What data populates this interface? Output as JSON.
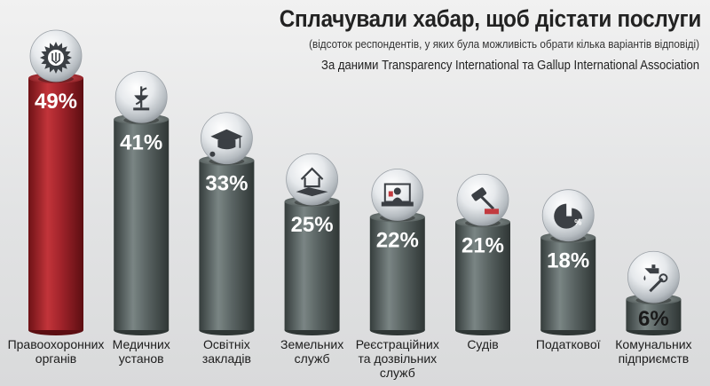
{
  "chart_data": {
    "type": "bar",
    "title": "Сплачували  хабар, щоб дістати послуги",
    "subtitle": "(відсоток респондентів, у яких була можливість обрати кілька варіантів відповіді)",
    "source": "За даними Transparency International та Gallup International Association",
    "unit": "%",
    "ylim": [
      0,
      49
    ],
    "categories": [
      {
        "label": [
          "Правоохоронних",
          "органів"
        ],
        "value": 49,
        "value_label": "49%",
        "icon": "police-emblem-icon",
        "highlight": true
      },
      {
        "label": [
          "Медичних",
          "установ"
        ],
        "value": 41,
        "value_label": "41%",
        "icon": "medical-caduceus-icon"
      },
      {
        "label": [
          "Освітніх",
          "закладів"
        ],
        "value": 33,
        "value_label": "33%",
        "icon": "graduation-cap-icon"
      },
      {
        "label": [
          "Земельних",
          "служб"
        ],
        "value": 25,
        "value_label": "25%",
        "icon": "house-land-icon"
      },
      {
        "label": [
          "Реєстраційних",
          "та дозвільних",
          "служб"
        ],
        "value": 22,
        "value_label": "22%",
        "icon": "registration-clerk-icon"
      },
      {
        "label": [
          "Судів"
        ],
        "value": 21,
        "value_label": "21%",
        "icon": "judge-gavel-icon"
      },
      {
        "label": [
          "Податкової"
        ],
        "value": 18,
        "value_label": "18%",
        "icon": "percent-pie-icon"
      },
      {
        "label": [
          "Комунальних",
          "підприємств"
        ],
        "value": 6,
        "value_label": "6%",
        "icon": "faucet-wrench-icon"
      }
    ]
  },
  "colors": {
    "highlight_bar": "#b3262c",
    "bar": "#5f6a69",
    "sphere": "#e8ebee"
  }
}
